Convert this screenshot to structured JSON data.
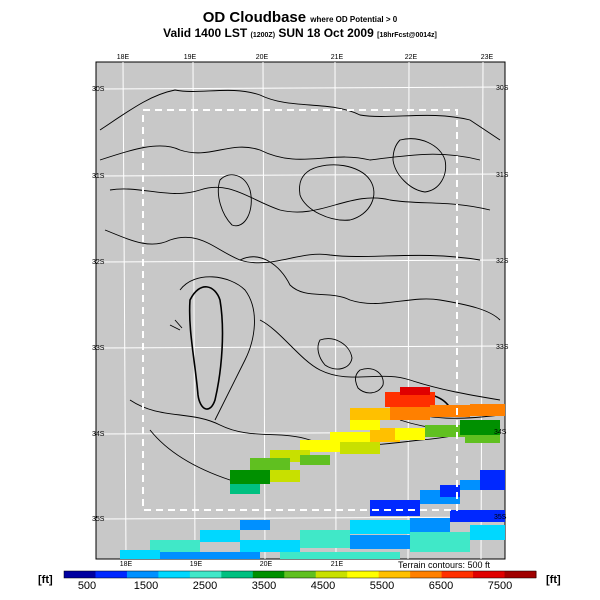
{
  "title": {
    "main": "OD Cloudbase",
    "main_suffix": "where OD Potential > 0",
    "valid_line": "Valid 1400 LST",
    "valid_code": "(1200Z)",
    "valid_date": "SUN 18 Oct 2009",
    "run_info": "[18hrFcst@0014z]"
  },
  "map": {
    "lon_labels": [
      "18E",
      "19E",
      "20E",
      "21E",
      "22E",
      "23E"
    ],
    "lat_labels": [
      "30S",
      "31S",
      "32S",
      "33S",
      "34S",
      "35S"
    ],
    "terrain_note": "Terrain contours: 500 ft",
    "background": "#c8c8c8"
  },
  "colorbar": {
    "unit": "[ft]",
    "ticks": [
      "500",
      "1500",
      "2500",
      "3500",
      "4500",
      "5500",
      "6500",
      "7500"
    ],
    "colors": [
      "#0000a0",
      "#0028ff",
      "#0090ff",
      "#00d8ff",
      "#40e8c8",
      "#00c080",
      "#009000",
      "#60c020",
      "#c8e000",
      "#ffff00",
      "#ffc000",
      "#ff8000",
      "#ff3000",
      "#e00000",
      "#a00000"
    ]
  }
}
